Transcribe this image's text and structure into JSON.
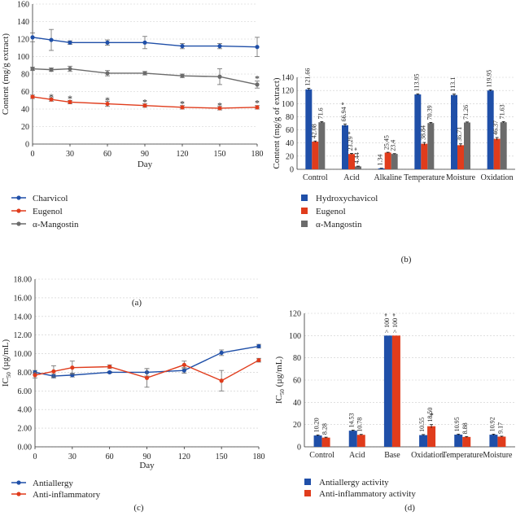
{
  "colors": {
    "blue": "#1f4fa8",
    "red": "#e03c1c",
    "gray": "#6b6b6b",
    "grid": "#cccccc",
    "axis": "#333333",
    "text": "#222222"
  },
  "chart_data": [
    {
      "id": "a",
      "type": "line",
      "panel_label": "(a)",
      "ylabel": "Content (mg/g extract)",
      "xlabel": "Day",
      "ylim": [
        0,
        160
      ],
      "yticks": [
        0,
        20,
        40,
        60,
        80,
        100,
        120,
        140,
        160
      ],
      "xlim": [
        0,
        180
      ],
      "xticks": [
        0,
        30,
        60,
        90,
        120,
        150,
        180
      ],
      "grid": "y",
      "legend": "below",
      "x": [
        0,
        15,
        30,
        60,
        90,
        120,
        150,
        180
      ],
      "series": [
        {
          "name": "Charvicol",
          "color": "blue",
          "values": [
            122,
            119,
            116,
            116,
            116,
            112,
            112,
            111
          ],
          "err": [
            5,
            12,
            2,
            3,
            7,
            3,
            3,
            11
          ]
        },
        {
          "name": "Eugenol",
          "color": "red",
          "values": [
            54,
            51,
            48,
            46,
            44,
            42,
            41,
            42
          ],
          "err": [
            2,
            2,
            2,
            3,
            2,
            2,
            2,
            2
          ]
        },
        {
          "name": "α-Mangostin",
          "color": "gray",
          "values": [
            86,
            85,
            86,
            81,
            81,
            78,
            77,
            68
          ],
          "err": [
            2,
            2,
            3,
            3,
            2,
            2,
            9,
            4
          ]
        }
      ],
      "annotations": [
        {
          "text": "*",
          "x": 15,
          "y": 55
        },
        {
          "text": "*",
          "x": 30,
          "y": 53
        },
        {
          "text": "*",
          "x": 60,
          "y": 51
        },
        {
          "text": "*",
          "x": 90,
          "y": 49
        },
        {
          "text": "*",
          "x": 120,
          "y": 47
        },
        {
          "text": "*",
          "x": 150,
          "y": 45
        },
        {
          "text": "*",
          "x": 180,
          "y": 48
        },
        {
          "text": "*",
          "x": 180,
          "y": 76
        }
      ]
    },
    {
      "id": "b",
      "type": "bar",
      "panel_label": "(b)",
      "ylabel": "Content (mg/g of extract)",
      "xlabel": "",
      "ylim": [
        0,
        140
      ],
      "yticks": [
        0,
        20,
        40,
        60,
        80,
        100,
        120,
        140
      ],
      "grid": "y",
      "legend": "below",
      "categories": [
        "Control",
        "Acid",
        "Alkaline",
        "Temperature",
        "Moisture",
        "Oxidation"
      ],
      "series": [
        {
          "name": "Hydroxychavicol",
          "color": "blue",
          "values": [
            121.66,
            66.94,
            1.34,
            113.95,
            113.1,
            119.95
          ],
          "labels": [
            "121.66",
            "66.94 *",
            "1.34",
            "113.95",
            "113.1",
            "119.95"
          ],
          "err": [
            1.5,
            2,
            0.3,
            1,
            1.5,
            1
          ]
        },
        {
          "name": "Eugenol",
          "color": "red",
          "values": [
            42.08,
            23.29,
            25.45,
            38.84,
            36.71,
            46.37
          ],
          "labels": [
            "42.08",
            "23.29 *",
            "25.45",
            "38.84",
            "36.71",
            "46.37"
          ],
          "err": [
            1,
            1,
            0.5,
            2,
            2,
            2
          ]
        },
        {
          "name": "α-Mangostin",
          "color": "gray",
          "values": [
            71.6,
            4.44,
            23.4,
            70.39,
            71.26,
            71.63
          ],
          "labels": [
            "71.6",
            "4.44 *",
            "23.4",
            "70.39",
            "71.26",
            "71.63"
          ],
          "err": [
            1,
            0.4,
            0.5,
            1,
            0.8,
            1
          ]
        }
      ]
    },
    {
      "id": "c",
      "type": "line",
      "panel_label": "(c)",
      "ylabel": "IC50 (µg/mL)",
      "xlabel": "Day",
      "ylim": [
        0,
        18
      ],
      "yticks": [
        0,
        2,
        4,
        6,
        8,
        10,
        12,
        14,
        16,
        18
      ],
      "ytick_labels": [
        "0.00",
        "2.00",
        "4.00",
        "6.00",
        "8.00",
        "10.00",
        "12.00",
        "14.00",
        "16.00",
        "18.00"
      ],
      "xlim": [
        0,
        180
      ],
      "xticks": [
        0,
        30,
        60,
        90,
        120,
        150,
        180
      ],
      "grid": "y",
      "legend": "below",
      "x": [
        0,
        15,
        30,
        60,
        90,
        120,
        150,
        180
      ],
      "series": [
        {
          "name": "Antiallergy",
          "color": "blue",
          "values": [
            8.0,
            7.6,
            7.7,
            8.0,
            8.0,
            8.2,
            10.1,
            10.8
          ],
          "err": [
            0.2,
            0.2,
            0.2,
            0.1,
            0.4,
            0.3,
            0.3,
            0.2
          ]
        },
        {
          "name": "Anti-inflammatory",
          "color": "red",
          "values": [
            7.7,
            8.1,
            8.5,
            8.6,
            7.4,
            8.8,
            7.1,
            9.3
          ],
          "err": [
            0.3,
            0.6,
            0.7,
            0.2,
            1.0,
            0.4,
            1.1,
            0.2
          ]
        }
      ]
    },
    {
      "id": "d",
      "type": "bar",
      "panel_label": "(d)",
      "ylabel": "IC50 (µg/mL)",
      "xlabel": "",
      "ylim": [
        0,
        120
      ],
      "yticks": [
        0,
        20,
        40,
        60,
        80,
        100,
        120
      ],
      "grid": "y",
      "legend": "below",
      "categories": [
        "Control",
        "Acid",
        "Base",
        "Oxidation",
        "Temperature",
        "Moisture"
      ],
      "series": [
        {
          "name": "Antiallergy activity",
          "color": "blue",
          "values": [
            10.2,
            14.53,
            100,
            10.55,
            10.95,
            10.92
          ],
          "labels": [
            "10.20",
            "14.53",
            "> 100 *",
            "10.55",
            "10.95",
            "10.92"
          ],
          "err": [
            0.5,
            0.5,
            0,
            0.5,
            0.5,
            0.5
          ]
        },
        {
          "name": "Anti-inflammatory activity",
          "color": "red",
          "values": [
            8.28,
            10.78,
            100,
            18.5,
            8.88,
            9.17
          ],
          "labels": [
            "8.28",
            "10.78",
            "> 100 *",
            "18.50",
            "8.88",
            "9.17"
          ],
          "err": [
            0.4,
            0.4,
            0,
            1.5,
            0.4,
            0.4
          ]
        }
      ],
      "annotations": [
        {
          "text": "*",
          "category": "Oxidation",
          "series": 1,
          "offset": 4
        }
      ]
    }
  ]
}
